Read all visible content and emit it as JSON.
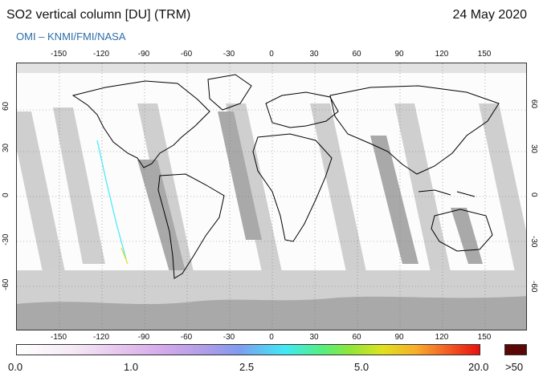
{
  "header": {
    "title": "SO2 vertical column [DU] (TRM)",
    "date": "24 May 2020",
    "credit": "OMI  –  KNMI/FMI/NASA"
  },
  "axes": {
    "longitude_ticks": [
      "-150",
      "-120",
      "-90",
      "-60",
      "-30",
      "0",
      "30",
      "60",
      "90",
      "120",
      "150"
    ],
    "latitude_ticks": [
      "60",
      "30",
      "0",
      "-30",
      "-60"
    ]
  },
  "colorbar": {
    "labels": [
      "0.0",
      "1.0",
      "2.5",
      "5.0",
      "20.0"
    ],
    "overflow_label": ">50",
    "overflow_color": "#5a0706"
  },
  "colors": {
    "swath_gray": "#c8c8c8",
    "dark_swath_gray": "#a8a8a8",
    "coastline": "#000000",
    "credit_blue": "#2e6ea8"
  }
}
